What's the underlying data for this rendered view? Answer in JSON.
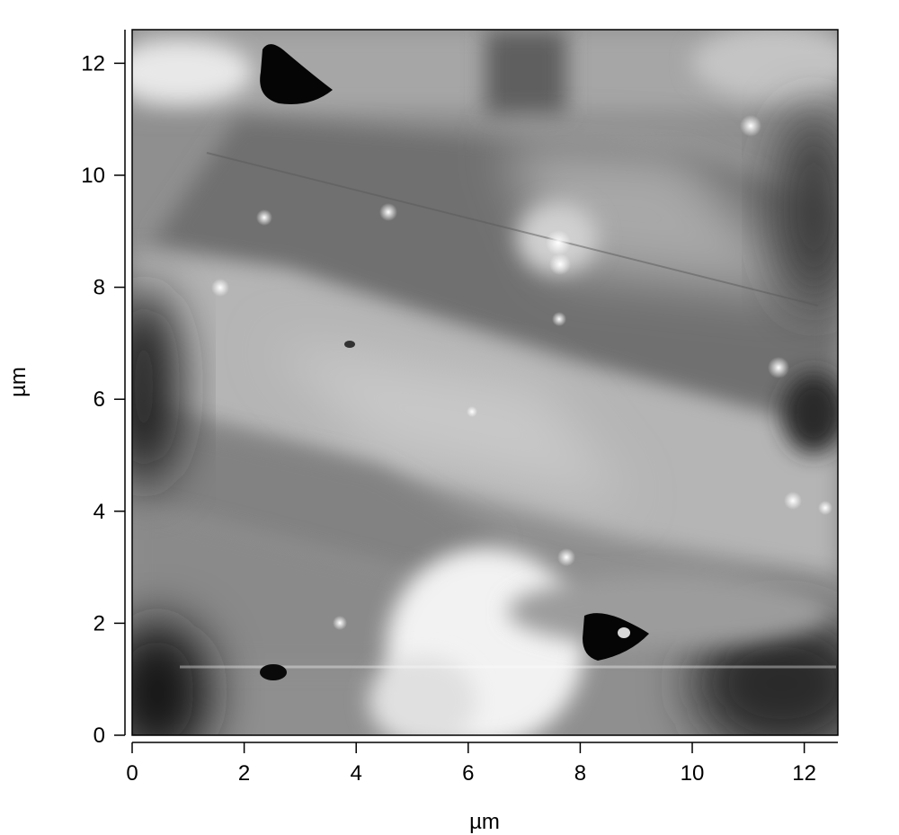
{
  "chart_data": {
    "type": "heatmap",
    "title": "",
    "xlabel": "µm",
    "ylabel": "µm",
    "xlim": [
      0,
      12.6
    ],
    "ylim": [
      0,
      12.6
    ],
    "x_ticks": [
      0,
      2,
      4,
      6,
      8,
      10,
      12
    ],
    "y_ticks": [
      0,
      2,
      4,
      6,
      8,
      10,
      12
    ],
    "colormap": "grayscale",
    "features": [
      {
        "name": "dark-pit",
        "x": 3.0,
        "y": 11.8
      },
      {
        "name": "dark-pit",
        "x": 8.6,
        "y": 1.8
      },
      {
        "name": "dark-pit",
        "x": 2.5,
        "y": 1.1
      },
      {
        "name": "bright-particle",
        "x": 7.6,
        "y": 8.8
      },
      {
        "name": "bright-particle",
        "x": 7.6,
        "y": 8.4
      },
      {
        "name": "bright-particle",
        "x": 11.6,
        "y": 6.6
      },
      {
        "name": "bright-particle",
        "x": 11.1,
        "y": 10.9
      },
      {
        "name": "bright-particle",
        "x": 4.5,
        "y": 9.3
      },
      {
        "name": "bright-particle",
        "x": 2.4,
        "y": 9.2
      },
      {
        "name": "bright-particle",
        "x": 11.6,
        "y": 4.2
      },
      {
        "name": "bright-region",
        "x": 6.2,
        "y": 1.6
      }
    ]
  }
}
